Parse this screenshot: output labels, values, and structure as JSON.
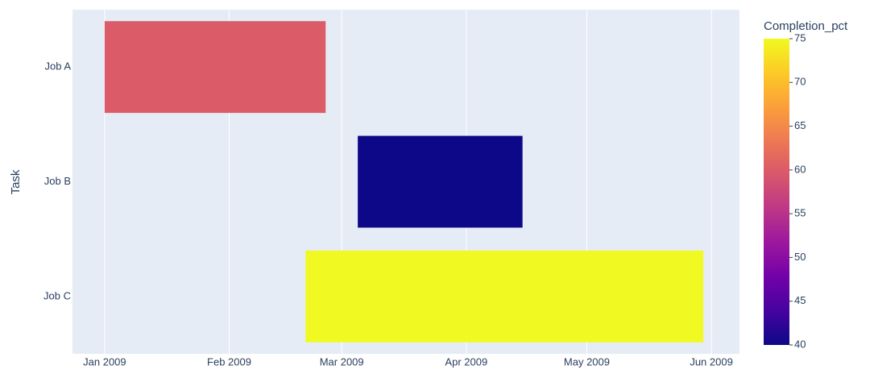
{
  "chart_data": {
    "type": "timeline",
    "y_label": "Task",
    "tasks": [
      "Job A",
      "Job B",
      "Job C"
    ],
    "start": [
      "2009-01-01",
      "2009-03-05",
      "2009-02-20"
    ],
    "finish": [
      "2009-02-25",
      "2009-04-15",
      "2009-05-30"
    ],
    "completion": [
      60,
      40,
      75
    ],
    "xlim": [
      "2008-12-24",
      "2009-06-08"
    ],
    "xticks": [
      {
        "value": "2009-01-01",
        "label": "Jan 2009"
      },
      {
        "value": "2009-02-01",
        "label": "Feb 2009"
      },
      {
        "value": "2009-03-01",
        "label": "Mar 2009"
      },
      {
        "value": "2009-04-01",
        "label": "Apr 2009"
      },
      {
        "value": "2009-05-01",
        "label": "May 2009"
      },
      {
        "value": "2009-06-01",
        "label": "Jun 2009"
      }
    ],
    "grid": true,
    "colorbar": {
      "title": "Completion_pct",
      "clim": [
        40,
        75
      ],
      "cticks": [
        40,
        45,
        50,
        55,
        60,
        65,
        70,
        75
      ],
      "colorscale": [
        "#0d0887",
        "#46039f",
        "#7201a8",
        "#9c179e",
        "#bd3786",
        "#d8576b",
        "#ed7953",
        "#fb9f3a",
        "#fdca26",
        "#f0f921"
      ]
    }
  }
}
